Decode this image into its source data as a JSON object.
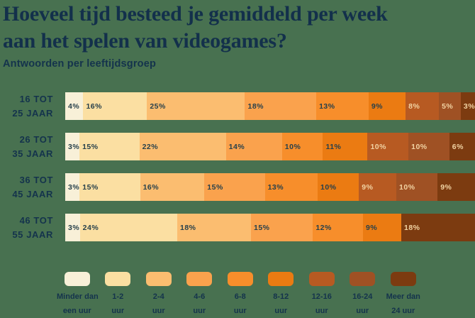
{
  "colors": {
    "background": "#487150",
    "navy": "#14334C",
    "title": "#13304B",
    "label_on_light": "#27404B",
    "label_on_dark": "#F2D3A3"
  },
  "title": {
    "line1": "Hoeveel tijd besteed je gemiddeld per week",
    "line2": "aan het spelen van videogames?"
  },
  "subtitle": "Antwoorden per leeftijdsgroep",
  "chart_data": {
    "type": "bar",
    "variant": "horizontal-stacked-percentage",
    "unit": "%",
    "title": "Hoeveel tijd besteed je gemiddeld per week aan het spelen van videogames?",
    "subtitle": "Antwoorden per leeftijdsgroep",
    "legend_position": "bottom",
    "categories": [
      "Minder dan een uur",
      "1-2 uur",
      "2-4 uur",
      "4-6 uur",
      "6-8 uur",
      "8-12 uur",
      "12-16 uur",
      "16-24 uur",
      "Meer dan 24 uur"
    ],
    "palette": [
      "#F8F0D8",
      "#FBDFA2",
      "#FBBD70",
      "#FAA24D",
      "#F78E2B",
      "#EB7B12",
      "#B75A22",
      "#9F5124",
      "#7C3B10"
    ],
    "legend_labels": [
      [
        "Minder dan",
        "een uur"
      ],
      [
        "1-2",
        "uur"
      ],
      [
        "2-4",
        "uur"
      ],
      [
        "4-6",
        "uur"
      ],
      [
        "6-8",
        "uur"
      ],
      [
        "8-12",
        "uur"
      ],
      [
        "12-16",
        "uur"
      ],
      [
        "16-24",
        "uur"
      ],
      [
        "Meer dan",
        "24 uur"
      ]
    ],
    "groups": [
      {
        "label": [
          "16 TOT",
          "25 JAAR"
        ],
        "values": [
          4,
          16,
          25,
          18,
          13,
          9,
          8,
          5,
          3
        ]
      },
      {
        "label": [
          "26 TOT",
          "35 JAAR"
        ],
        "values": [
          3,
          15,
          22,
          14,
          10,
          11,
          10,
          10,
          6
        ]
      },
      {
        "label": [
          "36 TOT",
          "45 JAAR"
        ],
        "values": [
          3,
          15,
          16,
          15,
          13,
          10,
          9,
          10,
          9
        ]
      },
      {
        "label": [
          "46 TOT",
          "55 JAAR"
        ],
        "values": [
          3,
          24,
          18,
          15,
          12,
          9,
          null,
          null,
          18
        ]
      }
    ]
  }
}
